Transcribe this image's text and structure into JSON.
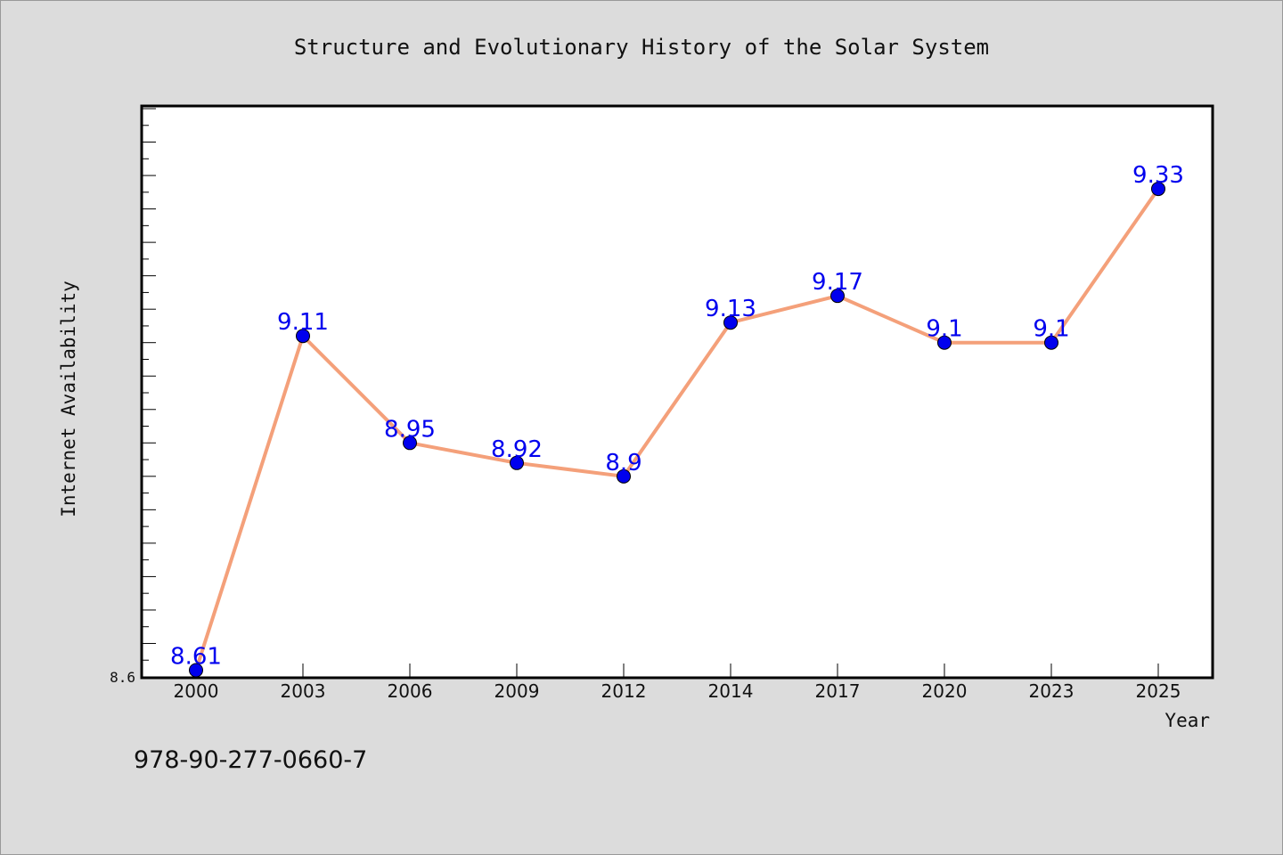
{
  "chart_data": {
    "type": "line",
    "title": "Structure and Evolutionary History of the Solar System",
    "xlabel": "Year",
    "ylabel": "Internet Availability",
    "categories": [
      "2000",
      "2003",
      "2006",
      "2009",
      "2012",
      "2014",
      "2017",
      "2020",
      "2023",
      "2025"
    ],
    "values": [
      8.61,
      9.11,
      8.95,
      8.92,
      8.9,
      9.13,
      9.17,
      9.1,
      9.1,
      9.33
    ],
    "data_labels": [
      "8.61",
      "9.11",
      "8.95",
      "8.92",
      "8.9",
      "9.13",
      "9.17",
      "9.1",
      "9.1",
      "9.33"
    ],
    "y_tick_labels": [
      "8.6"
    ],
    "ylim": [
      8.6,
      9.45
    ],
    "grid": false,
    "legend": "none",
    "colors": {
      "line": "#f4a07a",
      "marker": "#0000ee",
      "data_label": "#0000ee",
      "plot_background": "#ffffff",
      "page_background": "#dcdcdc"
    }
  },
  "footer": {
    "isbn": "978-90-277-0660-7"
  }
}
